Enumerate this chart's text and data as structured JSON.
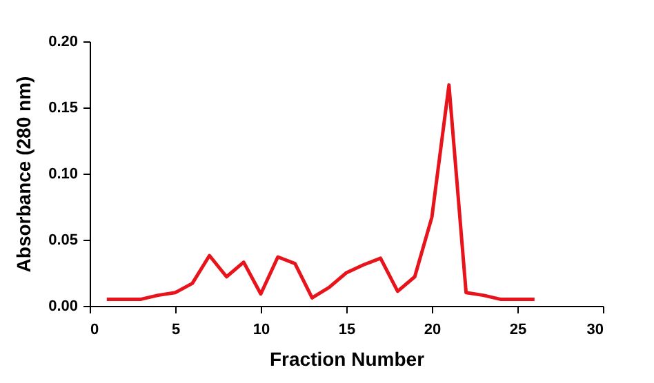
{
  "chart_data": {
    "type": "line",
    "xlabel": "Fraction Number",
    "ylabel": "Absorbance (280 nm)",
    "x": [
      1,
      2,
      3,
      4,
      5,
      6,
      7,
      8,
      9,
      10,
      11,
      12,
      13,
      14,
      15,
      16,
      17,
      18,
      19,
      20,
      21,
      22,
      23,
      24,
      25,
      26
    ],
    "series": [
      {
        "color": "#e8141c",
        "values": [
          0.005,
          0.005,
          0.005,
          0.008,
          0.01,
          0.017,
          0.038,
          0.022,
          0.033,
          0.009,
          0.037,
          0.032,
          0.006,
          0.014,
          0.025,
          0.031,
          0.036,
          0.011,
          0.022,
          0.067,
          0.167,
          0.01,
          0.008,
          0.005,
          0.005,
          0.005
        ]
      }
    ],
    "xlim": [
      0,
      30
    ],
    "xticks": [
      0,
      5,
      10,
      15,
      20,
      25,
      30
    ],
    "ylim": [
      0,
      0.2
    ],
    "yticks": [
      {
        "value": 0,
        "label": "0.00"
      },
      {
        "value": 0.05,
        "label": "0.05"
      },
      {
        "value": 0.1,
        "label": "0.10"
      },
      {
        "value": 0.15,
        "label": "0.15"
      },
      {
        "value": 0.2,
        "label": "0.20"
      }
    ],
    "grid": false,
    "marker": "none",
    "line_style": "solid"
  }
}
